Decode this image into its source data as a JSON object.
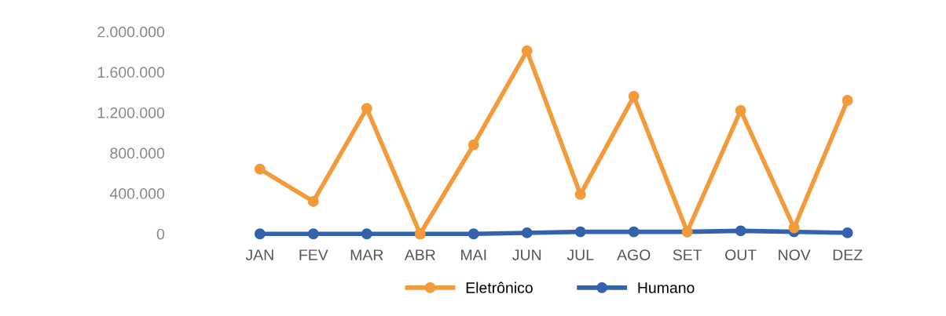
{
  "chart_data": {
    "type": "line",
    "categories": [
      "JAN",
      "FEV",
      "MAR",
      "ABR",
      "MAI",
      "JUN",
      "JUL",
      "AGO",
      "SET",
      "OUT",
      "NOV",
      "DEZ"
    ],
    "series": [
      {
        "name": "Eletrônico",
        "color": "#f39a3b",
        "values": [
          640000,
          320000,
          1240000,
          0,
          880000,
          1810000,
          390000,
          1360000,
          20000,
          1220000,
          60000,
          1320000
        ]
      },
      {
        "name": "Humano",
        "color": "#3462ad",
        "values": [
          0,
          0,
          0,
          0,
          0,
          10000,
          20000,
          20000,
          20000,
          30000,
          20000,
          10000
        ]
      }
    ],
    "ylim": [
      0,
      2000000
    ],
    "yticks": [
      {
        "value": 0,
        "label": "0"
      },
      {
        "value": 400000,
        "label": "400.000"
      },
      {
        "value": 800000,
        "label": "800.000"
      },
      {
        "value": 1200000,
        "label": "1.200.000"
      },
      {
        "value": 1600000,
        "label": "1.600.000"
      },
      {
        "value": 2000000,
        "label": "2.000.000"
      }
    ],
    "grid": false,
    "legend": "bottom",
    "marker": "circle",
    "line_style": "solid"
  }
}
